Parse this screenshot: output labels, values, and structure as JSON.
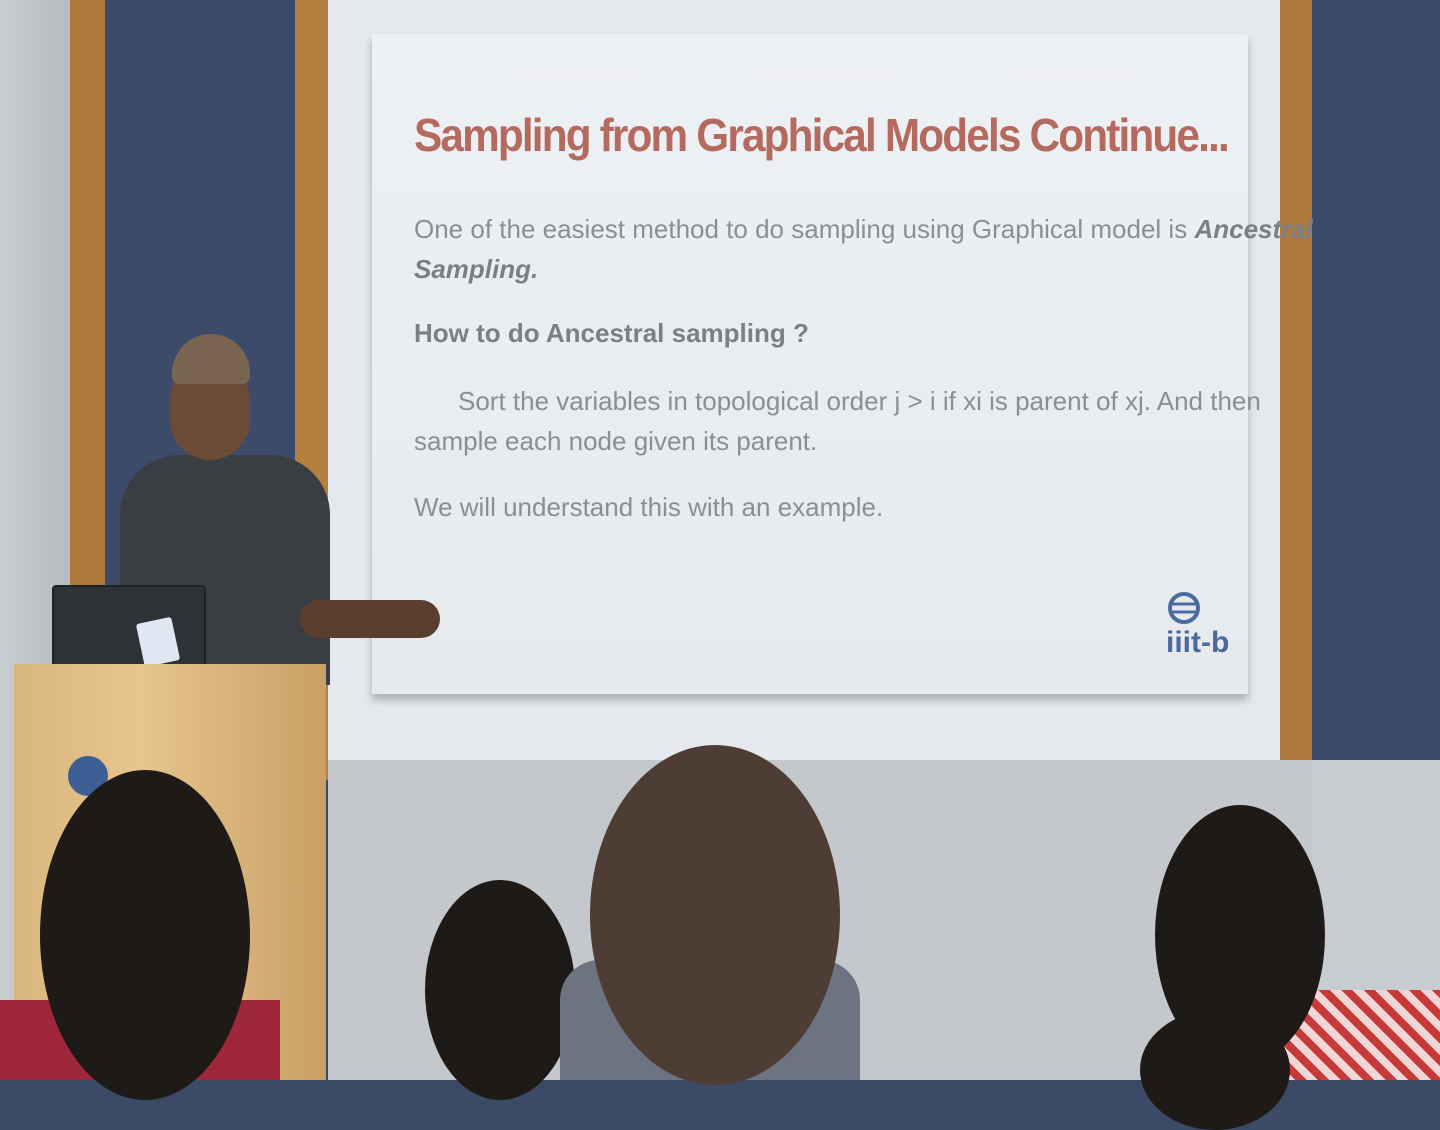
{
  "slide": {
    "title": "Sampling from Graphical Models Continue...",
    "intro": "One of the easiest method to do sampling using Graphical model is",
    "intro_emphasis": "Ancestral",
    "intro_line2": "Sampling.",
    "subheading": "How to do Ancestral sampling ?",
    "sort_line1": "Sort the variables in topological order j > i if xi is parent of xj. And then",
    "sort_line2": "sample each node given its parent.",
    "closing": "We will understand this with an example.",
    "logo_text": "iiit-b"
  },
  "colors": {
    "title": "#b46a5e",
    "body_text": "#8a8f94",
    "logo": "#4a6a9e"
  }
}
